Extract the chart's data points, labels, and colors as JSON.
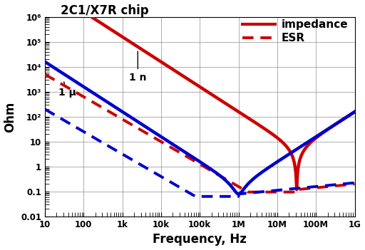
{
  "title": "2C1/X7R chip",
  "xlabel": "Frequency, Hz",
  "ylabel": "Ohm",
  "xlim": [
    10,
    1000000000.0
  ],
  "ylim": [
    0.01,
    1000000.0
  ],
  "legend_impedance": "impedance",
  "legend_esr": "ESR",
  "annotation_1u": "1 μ",
  "annotation_1n": "1 n",
  "color_1u": "#0000cc",
  "color_1n": "#cc0000",
  "legend_color": "#cc0000",
  "background_color": "#ffffff",
  "grid_color": "#999999",
  "xtick_labels": [
    "10",
    "100",
    "1k",
    "10k",
    "100k",
    "1M",
    "10M",
    "100M",
    "1G"
  ],
  "xtick_values": [
    10,
    100,
    1000,
    10000,
    100000,
    1000000,
    10000000,
    100000000,
    1000000000
  ],
  "ytick_labels": [
    "0.01",
    "0.1",
    "1",
    "10",
    "10²",
    "10³",
    "10⁴",
    "10⁵",
    "10⁶"
  ],
  "ytick_values": [
    0.01,
    0.1,
    1,
    10,
    100,
    1000,
    10000,
    100000,
    1000000
  ],
  "C1u": 1e-06,
  "L1u": 2.5e-08,
  "R1u": 0.08,
  "C1n": 1e-09,
  "L1n": 2.5e-08,
  "R1n": 0.12,
  "ESR1u_start": 200.0,
  "ESR1u_slope": 0.9,
  "ESR1n_start": 5000.0,
  "ESR1n_slope": 0.9
}
